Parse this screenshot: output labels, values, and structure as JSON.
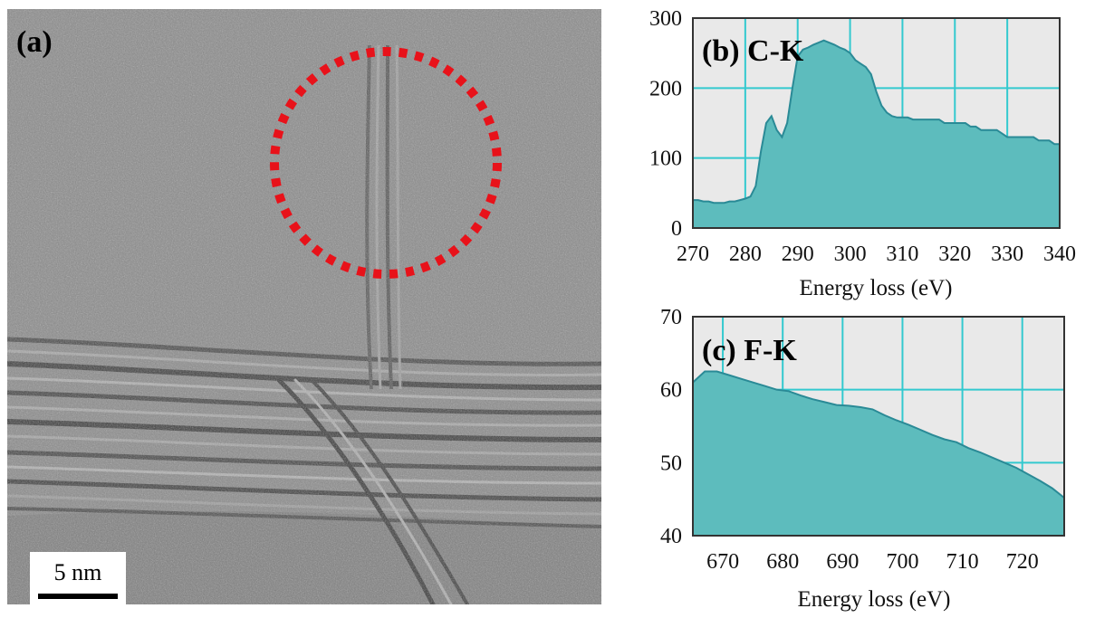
{
  "panel_a": {
    "label": "(a)",
    "scale_bar": "5 nm"
  },
  "chart_data": [
    {
      "type": "area",
      "panel_label": "(b) C-K",
      "xlabel": "Energy loss (eV)",
      "ylabel": "",
      "xlim": [
        270,
        340
      ],
      "ylim": [
        0,
        300
      ],
      "xticks": [
        270,
        280,
        290,
        300,
        310,
        320,
        330,
        340
      ],
      "yticks": [
        0,
        100,
        200,
        300
      ],
      "grid": true,
      "fill_color": "#5dbcbd",
      "line_color": "#2a8a96",
      "x": [
        270,
        271,
        272,
        273,
        274,
        275,
        276,
        277,
        278,
        279,
        280,
        281,
        282,
        283,
        284,
        285,
        286,
        287,
        288,
        289,
        290,
        291,
        292,
        293,
        294,
        295,
        296,
        297,
        298,
        299,
        300,
        301,
        302,
        303,
        304,
        305,
        306,
        307,
        308,
        309,
        310,
        311,
        312,
        313,
        314,
        315,
        316,
        317,
        318,
        319,
        320,
        321,
        322,
        323,
        324,
        325,
        326,
        327,
        328,
        329,
        330,
        331,
        332,
        333,
        334,
        335,
        336,
        337,
        338,
        339,
        340
      ],
      "values": [
        40,
        40,
        38,
        38,
        36,
        36,
        36,
        38,
        38,
        40,
        42,
        45,
        60,
        110,
        150,
        160,
        140,
        130,
        150,
        200,
        245,
        255,
        258,
        262,
        265,
        268,
        265,
        262,
        258,
        255,
        250,
        240,
        235,
        230,
        220,
        195,
        175,
        165,
        160,
        158,
        158,
        158,
        155,
        155,
        155,
        155,
        155,
        155,
        150,
        150,
        150,
        150,
        150,
        145,
        145,
        140,
        140,
        140,
        140,
        135,
        130,
        130,
        130,
        130,
        130,
        130,
        125,
        125,
        125,
        120,
        120
      ]
    },
    {
      "type": "area",
      "panel_label": "(c) F-K",
      "xlabel": "Energy loss (eV)",
      "ylabel": "",
      "xlim": [
        665,
        727
      ],
      "ylim": [
        40,
        70
      ],
      "xticks": [
        670,
        680,
        690,
        700,
        710,
        720
      ],
      "yticks": [
        40,
        50,
        60,
        70
      ],
      "grid": true,
      "fill_color": "#5dbcbd",
      "line_color": "#2a8a96",
      "x": [
        665,
        667,
        669,
        671,
        673,
        675,
        677,
        679,
        681,
        683,
        685,
        687,
        689,
        691,
        693,
        695,
        697,
        699,
        701,
        703,
        705,
        707,
        709,
        711,
        713,
        715,
        717,
        719,
        721,
        723,
        725,
        727
      ],
      "values": [
        61,
        62.5,
        62.5,
        62,
        61.5,
        61,
        60.5,
        60,
        59.8,
        59.2,
        58.7,
        58.3,
        57.9,
        57.8,
        57.6,
        57.3,
        56.5,
        55.8,
        55.2,
        54.5,
        53.8,
        53.2,
        52.8,
        52,
        51.4,
        50.7,
        50,
        49.3,
        48.4,
        47.5,
        46.5,
        45.2
      ]
    }
  ]
}
